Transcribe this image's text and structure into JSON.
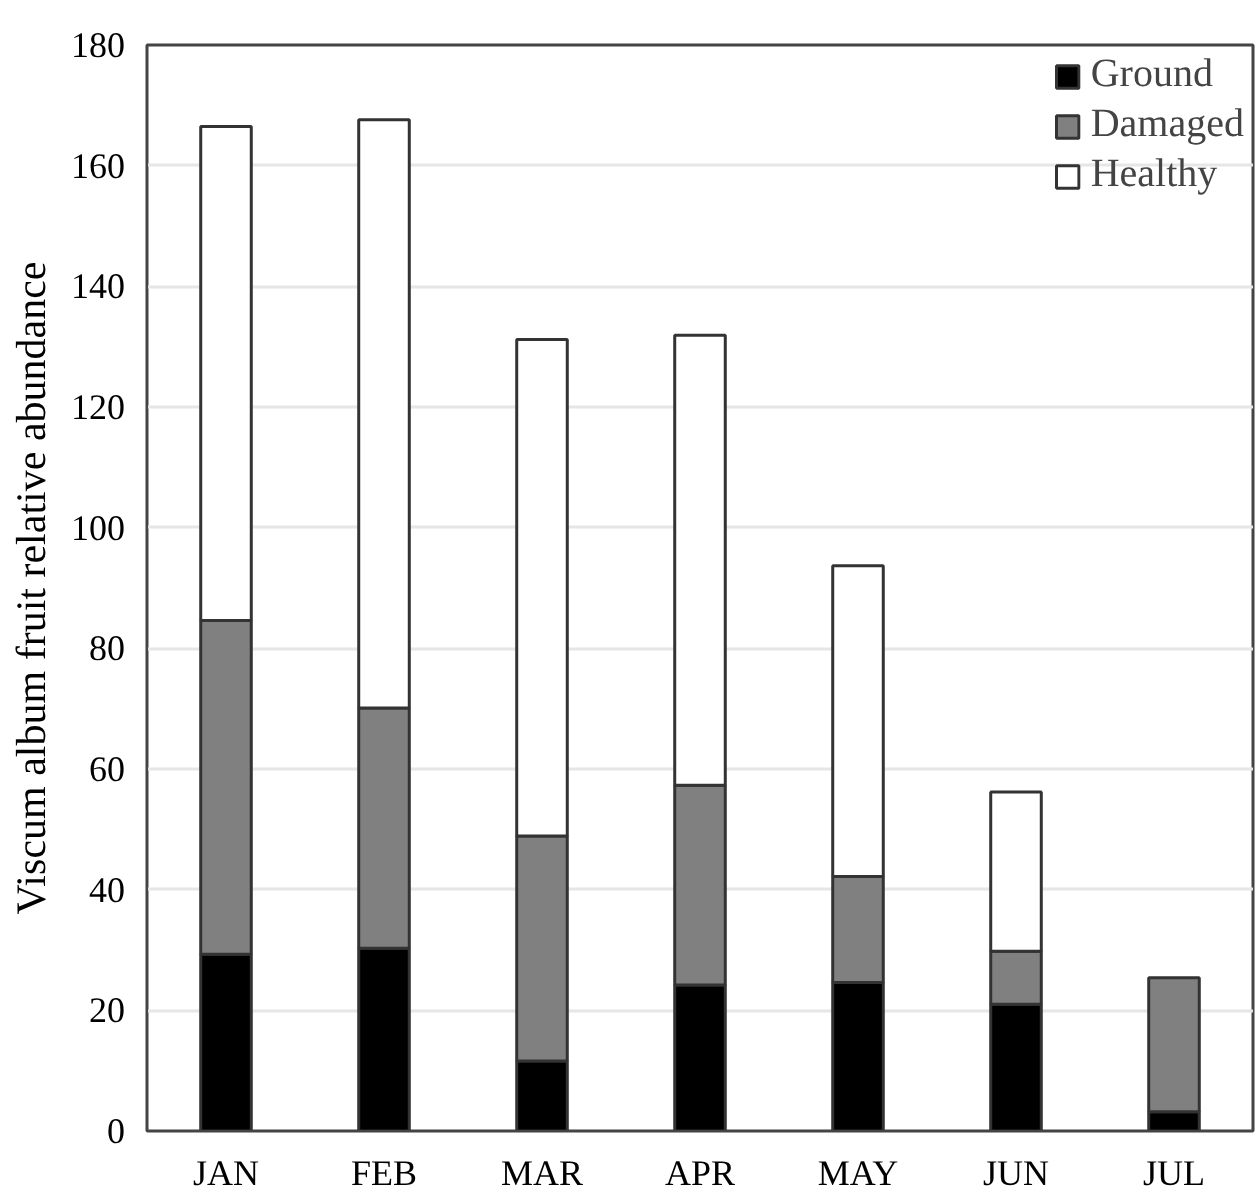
{
  "chart_data": {
    "type": "bar",
    "stacked": true,
    "ylabel": "Viscum album fruit relative abundance",
    "categories": [
      "JAN",
      "FEB",
      "MAR",
      "APR",
      "MAY",
      "JUN",
      "JUL"
    ],
    "series": [
      {
        "name": "Ground",
        "color": "#000000",
        "values": [
          29.3,
          30.3,
          11.6,
          24.2,
          24.6,
          21.0,
          3.2
        ]
      },
      {
        "name": "Damaged",
        "color": "#808080",
        "values": [
          55.3,
          39.8,
          37.3,
          33.1,
          17.6,
          8.8,
          22.2
        ]
      },
      {
        "name": "Healthy",
        "color": "#ffffff",
        "values": [
          81.9,
          97.5,
          82.3,
          74.6,
          51.5,
          26.4,
          null
        ]
      }
    ],
    "ylim": [
      0,
      180
    ],
    "yticks": [
      0,
      20,
      40,
      60,
      80,
      100,
      120,
      140,
      160,
      180
    ],
    "grid": "y",
    "legend": "top right"
  }
}
